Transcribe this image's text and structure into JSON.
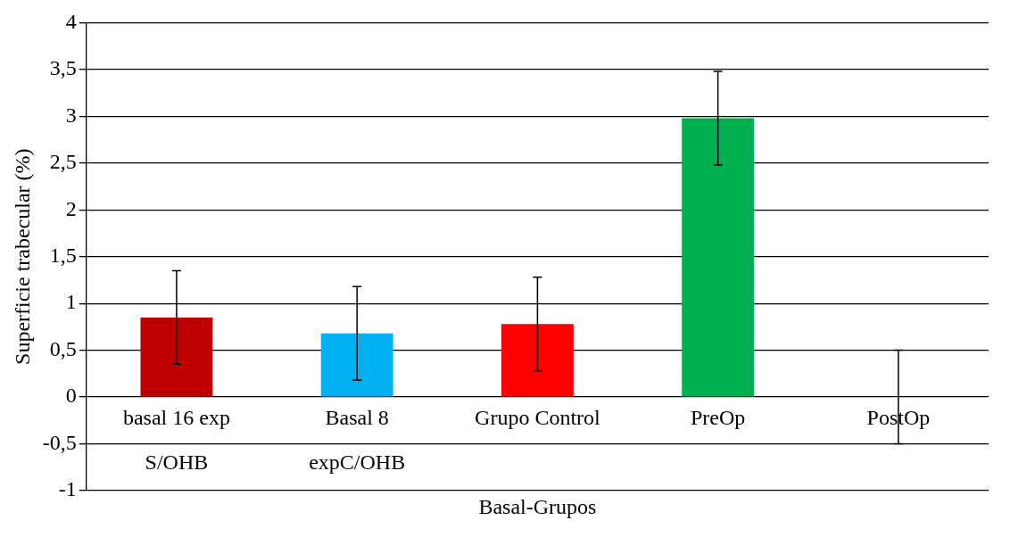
{
  "chart_data": {
    "type": "bar",
    "xlabel": "Basal-Grupos",
    "ylabel": "Superficie trabecular (%)",
    "categories": [
      "basal 16 exp S/OHB",
      "Basal 8 expC/OHB",
      "Grupo Control",
      "PreOp",
      "PostOp"
    ],
    "values": [
      0.85,
      0.68,
      0.78,
      2.98,
      0
    ],
    "errors": [
      0.5,
      0.5,
      0.5,
      0.5,
      0.5
    ],
    "colors": [
      "#c00000",
      "#00b0f0",
      "#ff0000",
      "#00b050",
      "#7f7f7f"
    ],
    "ylim": [
      -1,
      4
    ],
    "yticks": [
      {
        "value": -1,
        "label": "-1"
      },
      {
        "value": -0.5,
        "label": "-0,5"
      },
      {
        "value": 0,
        "label": "0"
      },
      {
        "value": 0.5,
        "label": "0,5"
      },
      {
        "value": 1,
        "label": "1"
      },
      {
        "value": 1.5,
        "label": "1,5"
      },
      {
        "value": 2,
        "label": "2"
      },
      {
        "value": 2.5,
        "label": "2,5"
      },
      {
        "value": 3,
        "label": "3"
      },
      {
        "value": 3.5,
        "label": "3,5"
      },
      {
        "value": 4,
        "label": "4"
      }
    ],
    "grid": "y",
    "legend": false
  }
}
